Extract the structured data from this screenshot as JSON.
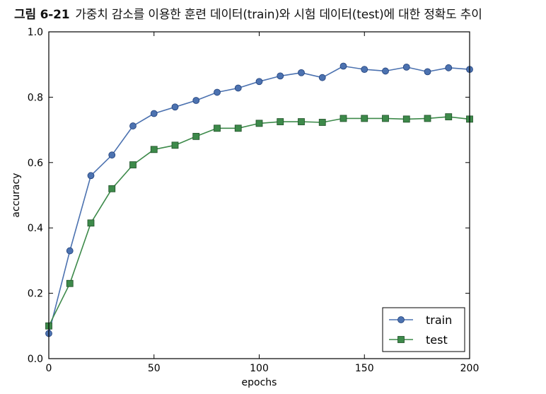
{
  "caption": {
    "figure_number": "그림 6-21",
    "text": "가중치 감소를 이용한 훈련 데이터(train)와 시험 데이터(test)에 대한 정확도 추이"
  },
  "chart_data": {
    "type": "line",
    "title": "",
    "xlabel": "epochs",
    "ylabel": "accuracy",
    "xlim": [
      0,
      200
    ],
    "ylim": [
      0.0,
      1.0
    ],
    "xticks": [
      "0",
      "50",
      "100",
      "150",
      "200"
    ],
    "yticks": [
      "0.0",
      "0.2",
      "0.4",
      "0.6",
      "0.8",
      "1.0"
    ],
    "grid": false,
    "legend_position": "lower-right",
    "series": [
      {
        "name": "train",
        "color": "#4c72b0",
        "marker": "circle",
        "x": [
          0,
          10,
          20,
          30,
          40,
          50,
          60,
          70,
          80,
          90,
          100,
          110,
          120,
          130,
          140,
          150,
          160,
          170,
          180,
          190,
          200
        ],
        "y": [
          0.077,
          0.33,
          0.56,
          0.623,
          0.712,
          0.75,
          0.77,
          0.79,
          0.815,
          0.828,
          0.848,
          0.865,
          0.875,
          0.86,
          0.895,
          0.885,
          0.88,
          0.892,
          0.878,
          0.89,
          0.885
        ]
      },
      {
        "name": "test",
        "color": "#3d8a4a",
        "marker": "square",
        "x": [
          0,
          10,
          20,
          30,
          40,
          50,
          60,
          70,
          80,
          90,
          100,
          110,
          120,
          130,
          140,
          150,
          160,
          170,
          180,
          190,
          200
        ],
        "y": [
          0.1,
          0.23,
          0.415,
          0.52,
          0.593,
          0.64,
          0.653,
          0.68,
          0.705,
          0.705,
          0.72,
          0.725,
          0.725,
          0.723,
          0.735,
          0.735,
          0.735,
          0.733,
          0.735,
          0.74,
          0.733
        ]
      }
    ]
  }
}
